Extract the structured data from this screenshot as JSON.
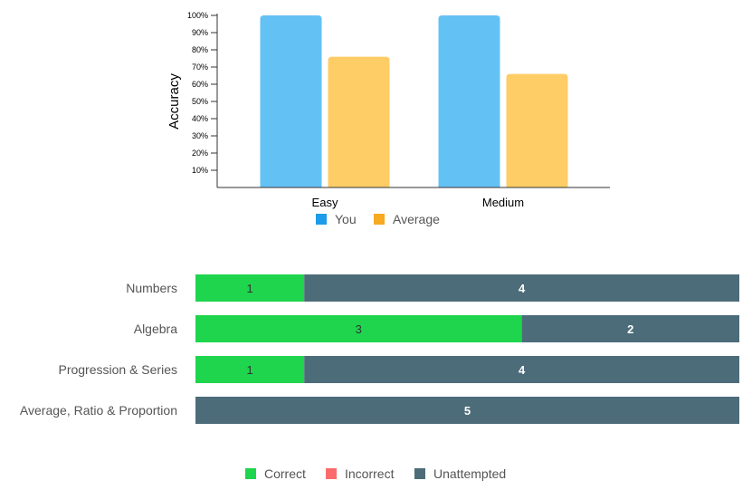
{
  "chart_data": [
    {
      "type": "bar",
      "categories": [
        "Easy",
        "Medium"
      ],
      "series": [
        {
          "name": "You",
          "values": [
            100,
            100
          ]
        },
        {
          "name": "Average",
          "values": [
            76,
            66
          ]
        }
      ],
      "ylabel": "Accuracy",
      "yticks": [
        "10%",
        "20%",
        "30%",
        "40%",
        "50%",
        "60%",
        "70%",
        "80%",
        "90%",
        "100%"
      ],
      "ylim": [
        0,
        100
      ],
      "colors": {
        "You": "#64c1f4",
        "Average": "#ffcd66"
      },
      "legend_colors": {
        "You": "#1e9be9",
        "Average": "#f7a922"
      },
      "legend_position": "bottom"
    },
    {
      "type": "bar",
      "orientation": "horizontal",
      "stacked": true,
      "categories": [
        "Numbers",
        "Algebra",
        "Progression & Series",
        "Average, Ratio & Proportion"
      ],
      "series": [
        {
          "name": "Correct",
          "values": [
            1,
            3,
            1,
            0
          ]
        },
        {
          "name": "Incorrect",
          "values": [
            0,
            0,
            0,
            0
          ]
        },
        {
          "name": "Unattempted",
          "values": [
            4,
            2,
            4,
            5
          ]
        }
      ],
      "xlim": [
        0,
        5
      ],
      "colors": {
        "Correct": "#1ed54d",
        "Incorrect": "#fb6b6b",
        "Unattempted": "#4d6c79"
      },
      "legend_position": "bottom"
    }
  ],
  "legend1": [
    {
      "label": "You",
      "color": "#1e9be9"
    },
    {
      "label": "Average",
      "color": "#f7a922"
    }
  ],
  "legend2": [
    {
      "label": "Correct",
      "color": "#1ed54d"
    },
    {
      "label": "Incorrect",
      "color": "#fb6b6b"
    },
    {
      "label": "Unattempted",
      "color": "#4d6c79"
    }
  ]
}
